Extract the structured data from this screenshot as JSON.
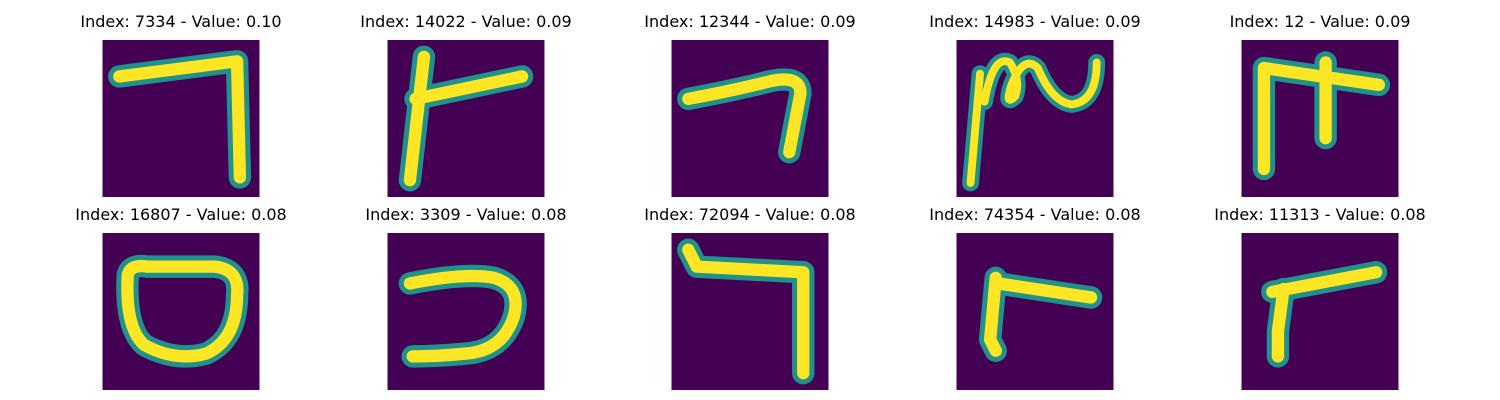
{
  "figure": {
    "background_color": "#ffffff",
    "image_background_color": "#440154",
    "stroke_edge_color": "#21918c",
    "stroke_core_color": "#fde725"
  },
  "panels": [
    {
      "index": 7334,
      "value": 0.1,
      "title": "Index: 7334 - Value: 0.10",
      "glyph": "seven-shape"
    },
    {
      "index": 14022,
      "value": 0.09,
      "title": "Index: 14022 - Value: 0.09",
      "glyph": "cross-shape"
    },
    {
      "index": 12344,
      "value": 0.09,
      "title": "Index: 12344 - Value: 0.09",
      "glyph": "seven-shape"
    },
    {
      "index": 14983,
      "value": 0.09,
      "title": "Index: 14983 - Value: 0.09",
      "glyph": "wave-shape"
    },
    {
      "index": 12,
      "value": 0.09,
      "title": "Index: 12 - Value: 0.09",
      "glyph": "fork-shape"
    },
    {
      "index": 16807,
      "value": 0.08,
      "title": "Index: 16807 - Value: 0.08",
      "glyph": "zero-shape"
    },
    {
      "index": 3309,
      "value": 0.08,
      "title": "Index: 3309 - Value: 0.08",
      "glyph": "reversed-c-shape"
    },
    {
      "index": 72094,
      "value": 0.08,
      "title": "Index: 72094 - Value: 0.08",
      "glyph": "seven-shape"
    },
    {
      "index": 74354,
      "value": 0.08,
      "title": "Index: 74354 - Value: 0.08",
      "glyph": "l-shape"
    },
    {
      "index": 11313,
      "value": 0.08,
      "title": "Index: 11313 - Value: 0.08",
      "glyph": "l-shape"
    }
  ]
}
